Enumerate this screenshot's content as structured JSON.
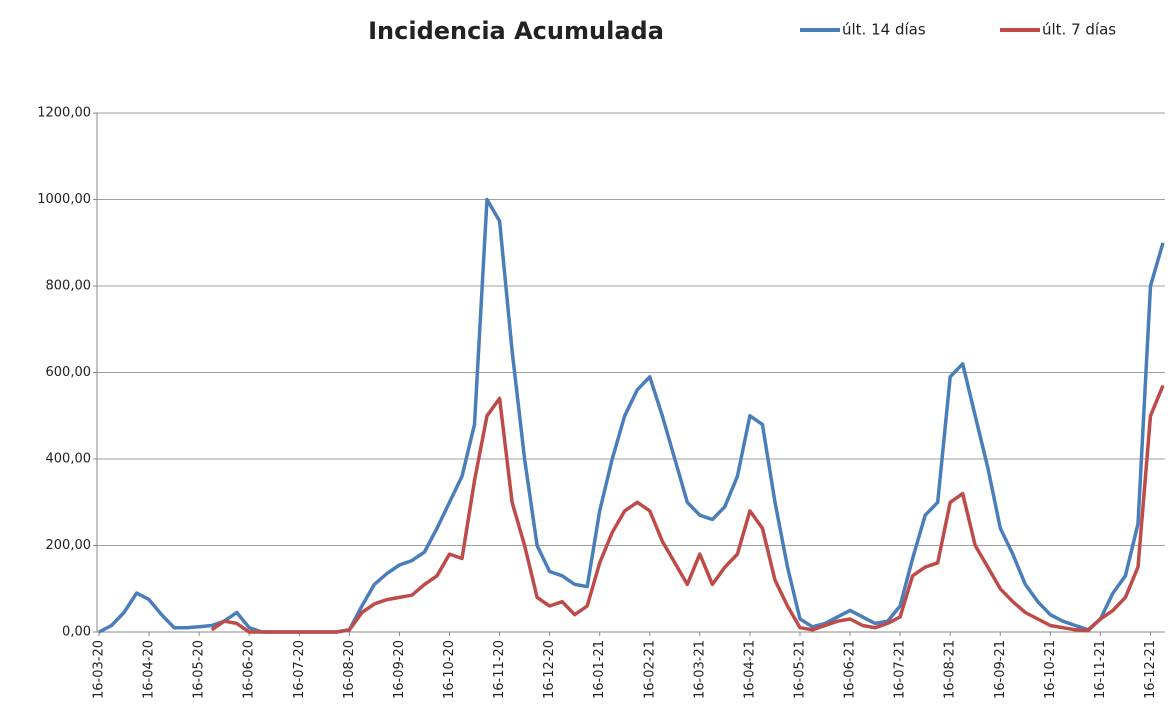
{
  "chart_data": {
    "type": "line",
    "title": "Incidencia Acumulada",
    "categories": [
      "16-03-20",
      null,
      null,
      null,
      "16-04-20",
      null,
      null,
      null,
      "16-05-20",
      null,
      null,
      null,
      "16-06-20",
      null,
      null,
      null,
      "16-07-20",
      null,
      null,
      null,
      "16-08-20",
      null,
      null,
      null,
      "16-09-20",
      null,
      null,
      null,
      "16-10-20",
      null,
      null,
      null,
      "16-11-20",
      null,
      null,
      null,
      "16-12-20",
      null,
      null,
      null,
      "16-01-21",
      null,
      null,
      null,
      "16-02-21",
      null,
      null,
      null,
      "16-03-21",
      null,
      null,
      null,
      "16-04-21",
      null,
      null,
      null,
      "16-05-21",
      null,
      null,
      null,
      "16-06-21",
      null,
      null,
      null,
      "16-07-21",
      null,
      null,
      null,
      "16-08-21",
      null,
      null,
      null,
      "16-09-21",
      null,
      null,
      null,
      "16-10-21",
      null,
      null,
      null,
      "16-11-21",
      null,
      null,
      null,
      "16-12-21",
      null
    ],
    "series": [
      {
        "name": "últ. 14 días",
        "color": "#4a7ebb",
        "values": [
          0,
          15,
          45,
          90,
          75,
          40,
          10,
          10,
          12,
          15,
          25,
          45,
          10,
          0,
          0,
          0,
          0,
          0,
          0,
          0,
          5,
          60,
          110,
          135,
          155,
          165,
          185,
          240,
          300,
          360,
          480,
          1000,
          950,
          650,
          400,
          200,
          140,
          130,
          110,
          105,
          280,
          400,
          500,
          560,
          590,
          500,
          400,
          300,
          270,
          260,
          290,
          360,
          500,
          480,
          300,
          150,
          30,
          12,
          20,
          35,
          50,
          35,
          20,
          25,
          60,
          170,
          270,
          300,
          590,
          620,
          500,
          380,
          240,
          180,
          110,
          70,
          40,
          25,
          15,
          5,
          30,
          90,
          130,
          250,
          800,
          900
        ]
      },
      {
        "name": "últ. 7 días",
        "color": "#be4b48",
        "values": [
          null,
          null,
          null,
          null,
          null,
          null,
          null,
          null,
          null,
          5,
          25,
          20,
          0,
          0,
          0,
          0,
          0,
          0,
          0,
          0,
          5,
          45,
          65,
          75,
          80,
          85,
          110,
          130,
          180,
          170,
          350,
          500,
          540,
          300,
          200,
          80,
          60,
          70,
          40,
          60,
          160,
          230,
          280,
          300,
          280,
          210,
          160,
          110,
          180,
          110,
          150,
          180,
          280,
          240,
          120,
          60,
          10,
          5,
          15,
          25,
          30,
          15,
          10,
          20,
          35,
          130,
          150,
          160,
          300,
          320,
          200,
          150,
          100,
          70,
          45,
          30,
          15,
          10,
          5,
          3,
          30,
          50,
          80,
          150,
          500,
          570
        ]
      }
    ],
    "ylim": [
      0,
      1200
    ],
    "yticks": [
      {
        "value": 0,
        "label": "0,00"
      },
      {
        "value": 200,
        "label": "200,00"
      },
      {
        "value": 400,
        "label": "400,00"
      },
      {
        "value": 600,
        "label": "600,00"
      },
      {
        "value": 800,
        "label": "800,00"
      },
      {
        "value": 1000,
        "label": "1000,00"
      },
      {
        "value": 1200,
        "label": "1200,00"
      }
    ],
    "grid": true,
    "legend": "top-right"
  }
}
